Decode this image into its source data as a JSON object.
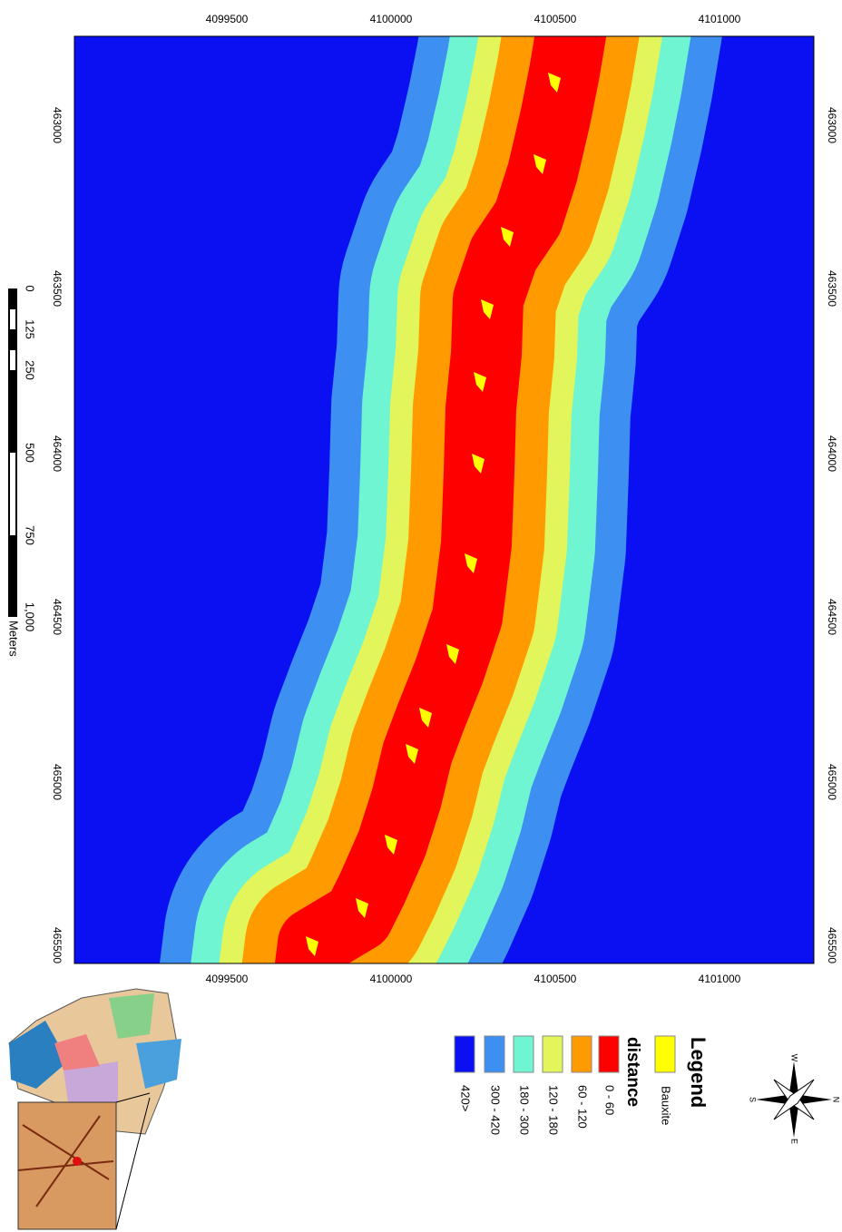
{
  "map": {
    "top_ticks": [
      "4099500",
      "4100000",
      "4100500",
      "4101000"
    ],
    "bottom_ticks": [
      "4099500",
      "4100000",
      "4100500",
      "4101000"
    ],
    "left_ticks": [
      "463000",
      "463500",
      "464000",
      "464500",
      "465000",
      "465500"
    ],
    "right_ticks": [
      "463000",
      "463500",
      "464000",
      "464500",
      "465000",
      "465500"
    ],
    "scale_bar": {
      "labels": [
        "0",
        "125",
        "250",
        "500",
        "750",
        "1,000"
      ],
      "unit": "Meters"
    },
    "legend": {
      "title": "Legend",
      "bauxite": "Bauxite",
      "distance_title": "distance",
      "classes": [
        "0 - 60",
        "60 - 120",
        "120 - 180",
        "180 - 300",
        "300 - 420",
        "420>"
      ]
    },
    "compass": {
      "n": "N",
      "s": "S",
      "e": "E",
      "w": "W"
    }
  }
}
